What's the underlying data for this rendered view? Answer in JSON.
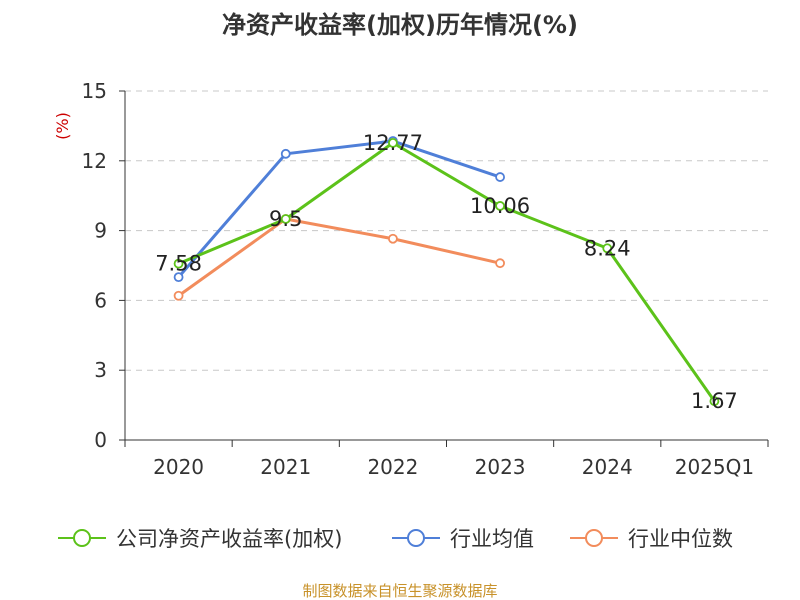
{
  "chart_data": {
    "type": "line",
    "title": "净资产收益率(加权)历年情况(%)",
    "unit": "(%)",
    "categories": [
      "2020",
      "2021",
      "2022",
      "2023",
      "2024",
      "2025Q1"
    ],
    "ylim": [
      0,
      15
    ],
    "yticks": [
      0,
      3,
      6,
      9,
      12,
      15
    ],
    "grid": true,
    "legend_position": "bottom",
    "series": [
      {
        "name": "公司净资产收益率(加权)",
        "color": "#5cc21a",
        "labeled": true,
        "values": [
          7.58,
          9.5,
          12.77,
          10.06,
          8.24,
          1.67
        ]
      },
      {
        "name": "行业均值",
        "color": "#4f7fd8",
        "labeled": false,
        "values": [
          7.0,
          12.3,
          12.85,
          11.3,
          null,
          null
        ]
      },
      {
        "name": "行业中位数",
        "color": "#f28c5c",
        "labeled": false,
        "values": [
          6.2,
          9.5,
          8.65,
          7.6,
          null,
          null
        ]
      }
    ],
    "source": "制图数据来自恒生聚源数据库"
  }
}
